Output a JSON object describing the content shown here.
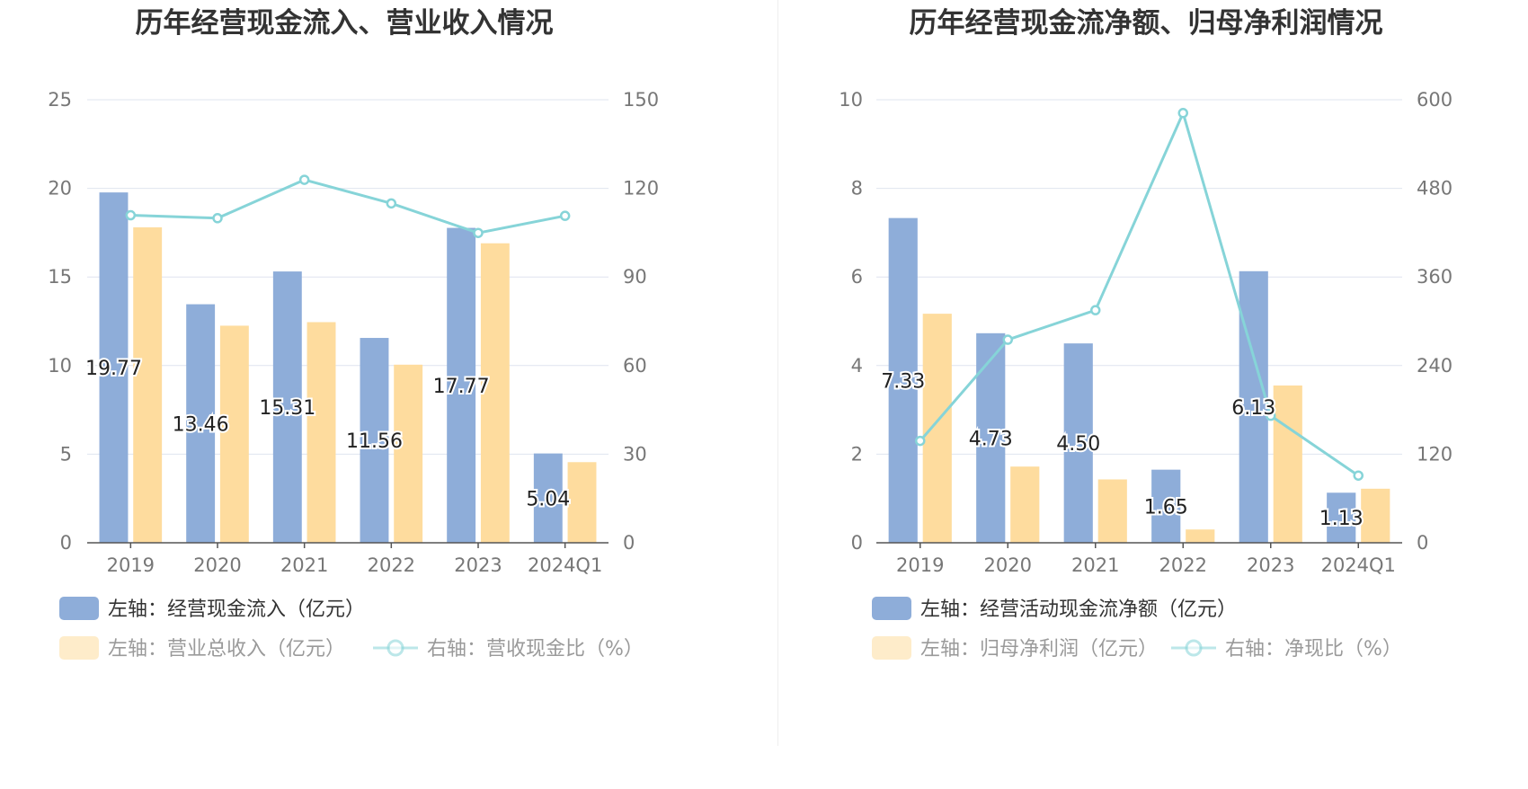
{
  "colors": {
    "bar_primary": "#8eadd9",
    "bar_secondary": "#fedc9e",
    "line": "#86d4d8",
    "grid": "#dfe4ef",
    "axis": "#555555"
  },
  "chart_data": [
    {
      "type": "bar",
      "title": "历年经营现金流入、营业收入情况",
      "categories": [
        "2019",
        "2020",
        "2021",
        "2022",
        "2023",
        "2024Q1"
      ],
      "y_left_ticks": [
        "0",
        "5",
        "10",
        "15",
        "20",
        "25"
      ],
      "y_right_ticks": [
        "0",
        "30",
        "60",
        "90",
        "120",
        "150"
      ],
      "ylim_left": [
        0,
        25
      ],
      "ylim_right": [
        0,
        150
      ],
      "series": [
        {
          "name": "左轴：经营现金流入（亿元）",
          "axis": "left",
          "kind": "bar",
          "values": [
            19.77,
            13.46,
            15.31,
            11.56,
            17.77,
            5.04
          ],
          "labels": [
            "19.77",
            "13.46",
            "15.31",
            "11.56",
            "17.77",
            "5.04"
          ]
        },
        {
          "name": "左轴：营业总收入（亿元）",
          "axis": "left",
          "kind": "bar",
          "values": [
            17.8,
            12.25,
            12.45,
            10.05,
            16.9,
            4.55
          ]
        },
        {
          "name": "右轴：营收现金比（%）",
          "axis": "right",
          "kind": "line",
          "values": [
            110.9,
            109.9,
            122.9,
            114.9,
            104.9,
            110.7
          ]
        }
      ],
      "grid": true,
      "legend_position": "bottom-left"
    },
    {
      "type": "bar",
      "title": "历年经营现金流净额、归母净利润情况",
      "categories": [
        "2019",
        "2020",
        "2021",
        "2022",
        "2023",
        "2024Q1"
      ],
      "y_left_ticks": [
        "0",
        "2",
        "4",
        "6",
        "8",
        "10"
      ],
      "y_right_ticks": [
        "0",
        "120",
        "240",
        "360",
        "480",
        "600"
      ],
      "ylim_left": [
        0,
        10
      ],
      "ylim_right": [
        0,
        600
      ],
      "series": [
        {
          "name": "左轴：经营活动现金流净额（亿元）",
          "axis": "left",
          "kind": "bar",
          "values": [
            7.33,
            4.73,
            4.5,
            1.65,
            6.13,
            1.13
          ],
          "labels": [
            "7.33",
            "4.73",
            "4.50",
            "1.65",
            "6.13",
            "1.13"
          ]
        },
        {
          "name": "左轴：归母净利润（亿元）",
          "axis": "left",
          "kind": "bar",
          "values": [
            5.17,
            1.72,
            1.43,
            0.3,
            3.55,
            1.22
          ]
        },
        {
          "name": "右轴：净现比（%）",
          "axis": "right",
          "kind": "line",
          "values": [
            138,
            275,
            315,
            582,
            172,
            91
          ]
        }
      ],
      "grid": true,
      "legend_position": "bottom-left"
    }
  ]
}
